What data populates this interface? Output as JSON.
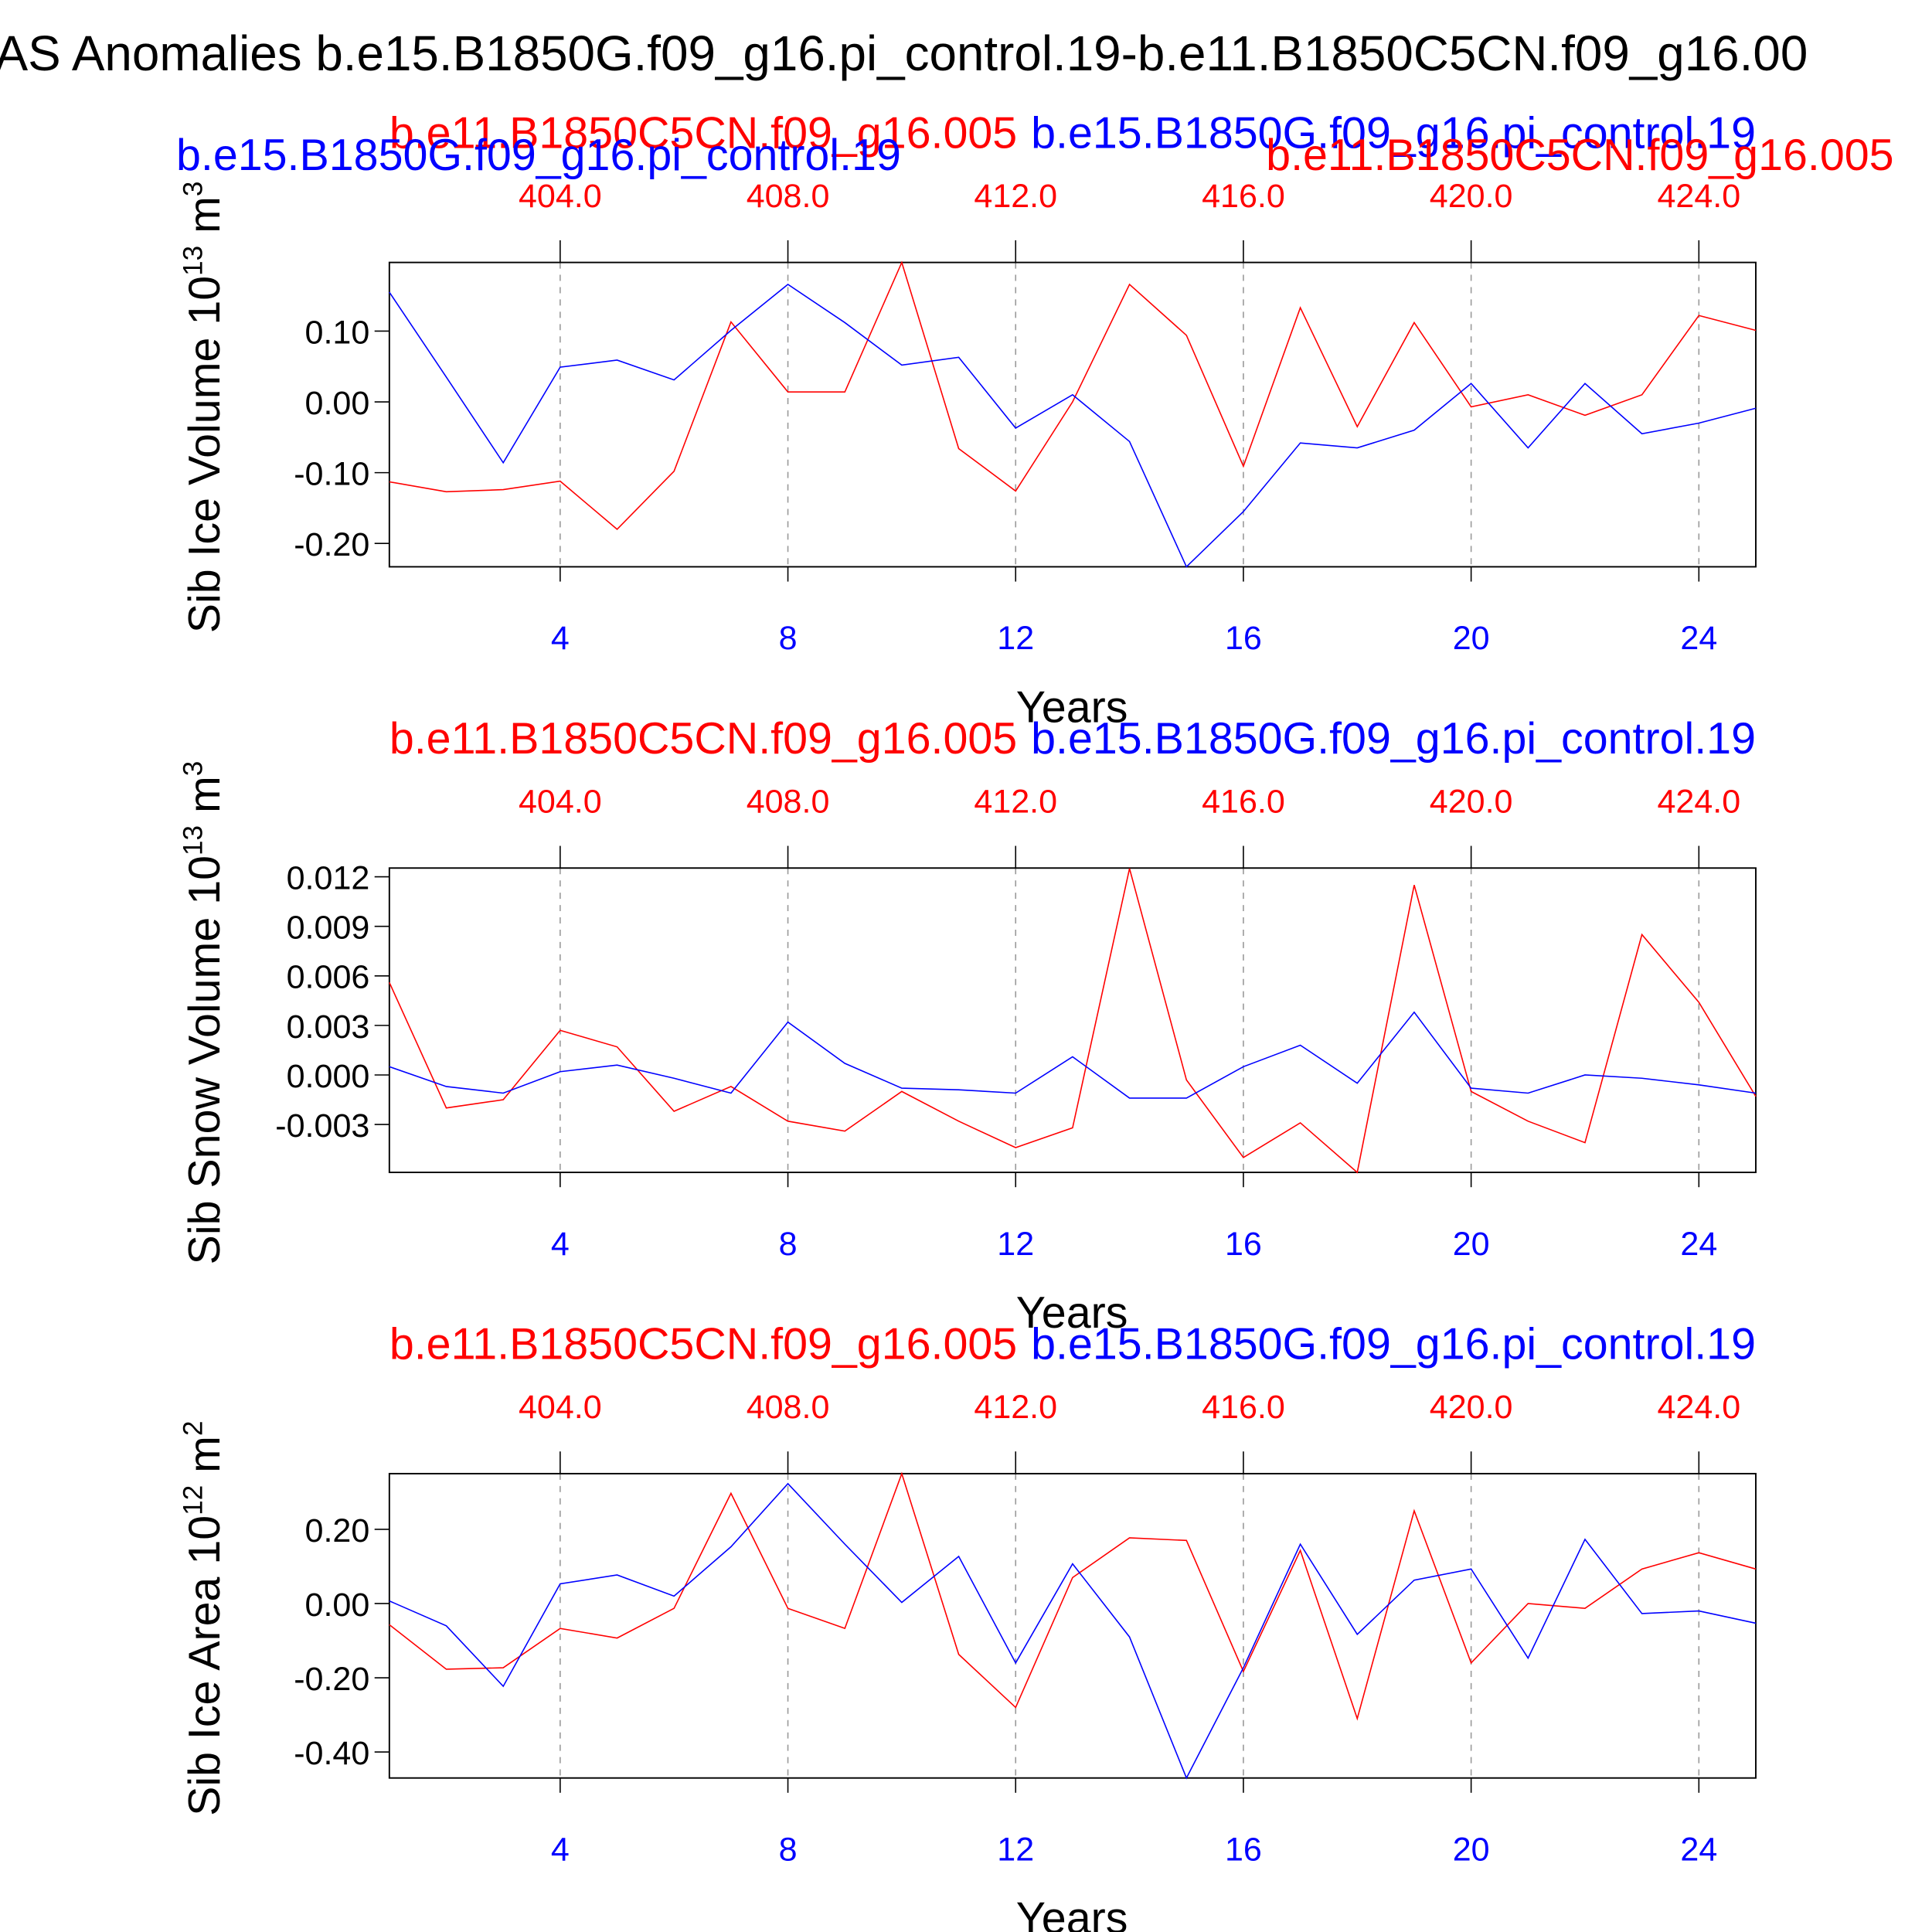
{
  "title": "AS Anomalies b.e15.B1850G.f09_g16.pi_control.19-b.e11.B1850C5CN.f09_g16.00",
  "chart_data": [
    {
      "type": "line",
      "ylabel": "Sib Ice Volume 10",
      "ylabel_exponent": "13",
      "ylabel_unit": "m",
      "ylabel_unit_exponent": "3",
      "xlabel": "Years",
      "x": [
        1,
        2,
        3,
        4,
        5,
        6,
        7,
        8,
        9,
        10,
        11,
        12,
        13,
        14,
        15,
        16,
        17,
        18,
        19,
        20,
        21,
        22,
        23,
        24,
        25
      ],
      "xlim": [
        1,
        25
      ],
      "xticks": [
        4,
        8,
        12,
        16,
        20,
        24
      ],
      "xtick_color": "#0000ff",
      "x2lim": [
        401,
        425
      ],
      "x2ticks": [
        {
          "value": 404,
          "label": "404.0"
        },
        {
          "value": 408,
          "label": "408.0"
        },
        {
          "value": 412,
          "label": "412.0"
        },
        {
          "value": 416,
          "label": "416.0"
        },
        {
          "value": 420,
          "label": "420.0"
        },
        {
          "value": 424,
          "label": "424.0"
        }
      ],
      "x2tick_color": "#ff0000",
      "ylim": [
        -0.233,
        0.197
      ],
      "yticks": [
        {
          "value": -0.2,
          "label": "-0.20"
        },
        {
          "value": -0.1,
          "label": "-0.10"
        },
        {
          "value": 0,
          "label": "0.00"
        },
        {
          "value": 0.1,
          "label": "0.10"
        }
      ],
      "grid": "x",
      "series": [
        {
          "name": "b.e11.B1850C5CN.f09_g16.005",
          "color": "#ff0000",
          "values": [
            -0.113,
            -0.127,
            -0.124,
            -0.112,
            -0.18,
            -0.098,
            0.113,
            0.014,
            0.014,
            0.197,
            -0.066,
            -0.126,
            0.0,
            0.166,
            0.094,
            -0.091,
            0.133,
            -0.035,
            0.112,
            -0.007,
            0.01,
            -0.019,
            0.01,
            0.122,
            0.101
          ]
        },
        {
          "name": "b.e15.B1850G.f09_g16.pi_control.19",
          "color": "#0000ff",
          "values": [
            0.155,
            0.035,
            -0.086,
            0.049,
            0.059,
            0.031,
            0.101,
            0.166,
            0.112,
            0.052,
            0.063,
            -0.037,
            0.01,
            -0.056,
            -0.233,
            -0.155,
            -0.058,
            -0.065,
            -0.04,
            0.026,
            -0.065,
            0.026,
            -0.045,
            -0.03,
            -0.009
          ]
        }
      ]
    },
    {
      "type": "line",
      "ylabel": "Sib Snow Volume 10",
      "ylabel_exponent": "13",
      "ylabel_unit": "m",
      "ylabel_unit_exponent": "3",
      "xlabel": "Years",
      "x": [
        1,
        2,
        3,
        4,
        5,
        6,
        7,
        8,
        9,
        10,
        11,
        12,
        13,
        14,
        15,
        16,
        17,
        18,
        19,
        20,
        21,
        22,
        23,
        24,
        25
      ],
      "xlim": [
        1,
        25
      ],
      "xticks": [
        4,
        8,
        12,
        16,
        20,
        24
      ],
      "xtick_color": "#0000ff",
      "x2lim": [
        401,
        425
      ],
      "x2ticks": [
        {
          "value": 404,
          "label": "404.0"
        },
        {
          "value": 408,
          "label": "408.0"
        },
        {
          "value": 412,
          "label": "412.0"
        },
        {
          "value": 416,
          "label": "416.0"
        },
        {
          "value": 420,
          "label": "420.0"
        },
        {
          "value": 424,
          "label": "424.0"
        }
      ],
      "x2tick_color": "#ff0000",
      "ylim": [
        -0.0059,
        0.01253
      ],
      "yticks": [
        {
          "value": -0.003,
          "label": "-0.003"
        },
        {
          "value": 0,
          "label": "0.000"
        },
        {
          "value": 0.003,
          "label": "0.003"
        },
        {
          "value": 0.006,
          "label": "0.006"
        },
        {
          "value": 0.009,
          "label": "0.009"
        },
        {
          "value": 0.012,
          "label": "0.012"
        }
      ],
      "grid": "x",
      "series": [
        {
          "name": "b.e11.B1850C5CN.f09_g16.005",
          "color": "#ff0000",
          "values": [
            0.0056,
            -0.002,
            -0.0015,
            0.0027,
            0.0017,
            -0.0022,
            -0.0007,
            -0.0028,
            -0.0034,
            -0.001,
            -0.0028,
            -0.0044,
            -0.0032,
            0.0125,
            -0.0003,
            -0.005,
            -0.0029,
            -0.0059,
            0.0115,
            -0.001,
            -0.0028,
            -0.0041,
            0.0085,
            0.0044,
            -0.0013
          ]
        },
        {
          "name": "b.e15.B1850G.f09_g16.pi_control.19",
          "color": "#0000ff",
          "values": [
            0.0005,
            -0.0007,
            -0.0011,
            0.0002,
            0.0006,
            -0.0002,
            -0.0011,
            0.0032,
            0.0007,
            -0.0008,
            -0.0009,
            -0.0011,
            0.0011,
            -0.0014,
            -0.0014,
            0.0005,
            0.0018,
            -0.0005,
            0.0038,
            -0.0008,
            -0.0011,
            0.0,
            -0.0002,
            -0.0006,
            -0.0011
          ]
        }
      ]
    },
    {
      "type": "line",
      "ylabel": "Sib Ice Area 10",
      "ylabel_exponent": "12",
      "ylabel_unit": "m",
      "ylabel_unit_exponent": "2",
      "xlabel": "Years",
      "x": [
        1,
        2,
        3,
        4,
        5,
        6,
        7,
        8,
        9,
        10,
        11,
        12,
        13,
        14,
        15,
        16,
        17,
        18,
        19,
        20,
        21,
        22,
        23,
        24,
        25
      ],
      "xlim": [
        1,
        25
      ],
      "xticks": [
        4,
        8,
        12,
        16,
        20,
        24
      ],
      "xtick_color": "#0000ff",
      "x2lim": [
        401,
        425
      ],
      "x2ticks": [
        {
          "value": 404,
          "label": "404.0"
        },
        {
          "value": 408,
          "label": "408.0"
        },
        {
          "value": 412,
          "label": "412.0"
        },
        {
          "value": 416,
          "label": "416.0"
        },
        {
          "value": 420,
          "label": "420.0"
        },
        {
          "value": 424,
          "label": "424.0"
        }
      ],
      "x2tick_color": "#ff0000",
      "ylim": [
        -0.47,
        0.35
      ],
      "yticks": [
        {
          "value": -0.4,
          "label": "-0.40"
        },
        {
          "value": -0.2,
          "label": "-0.20"
        },
        {
          "value": 0,
          "label": "0.00"
        },
        {
          "value": 0.2,
          "label": "0.20"
        }
      ],
      "grid": "x",
      "series": [
        {
          "name": "b.e11.B1850C5CN.f09_g16.005",
          "color": "#ff0000",
          "values": [
            -0.057,
            -0.177,
            -0.173,
            -0.067,
            -0.093,
            -0.013,
            0.297,
            -0.013,
            -0.067,
            0.35,
            -0.137,
            -0.28,
            0.07,
            0.177,
            0.17,
            -0.183,
            0.143,
            -0.31,
            0.25,
            -0.16,
            0.0,
            -0.013,
            0.093,
            0.137,
            0.093
          ]
        },
        {
          "name": "b.e15.B1850G.f09_g16.pi_control.19",
          "color": "#0000ff",
          "values": [
            0.007,
            -0.06,
            -0.223,
            0.053,
            0.077,
            0.02,
            0.153,
            0.323,
            0.16,
            0.003,
            0.127,
            -0.16,
            0.107,
            -0.09,
            -0.47,
            -0.173,
            0.16,
            -0.083,
            0.063,
            0.093,
            -0.147,
            0.173,
            -0.027,
            -0.02,
            -0.053
          ]
        }
      ]
    }
  ]
}
